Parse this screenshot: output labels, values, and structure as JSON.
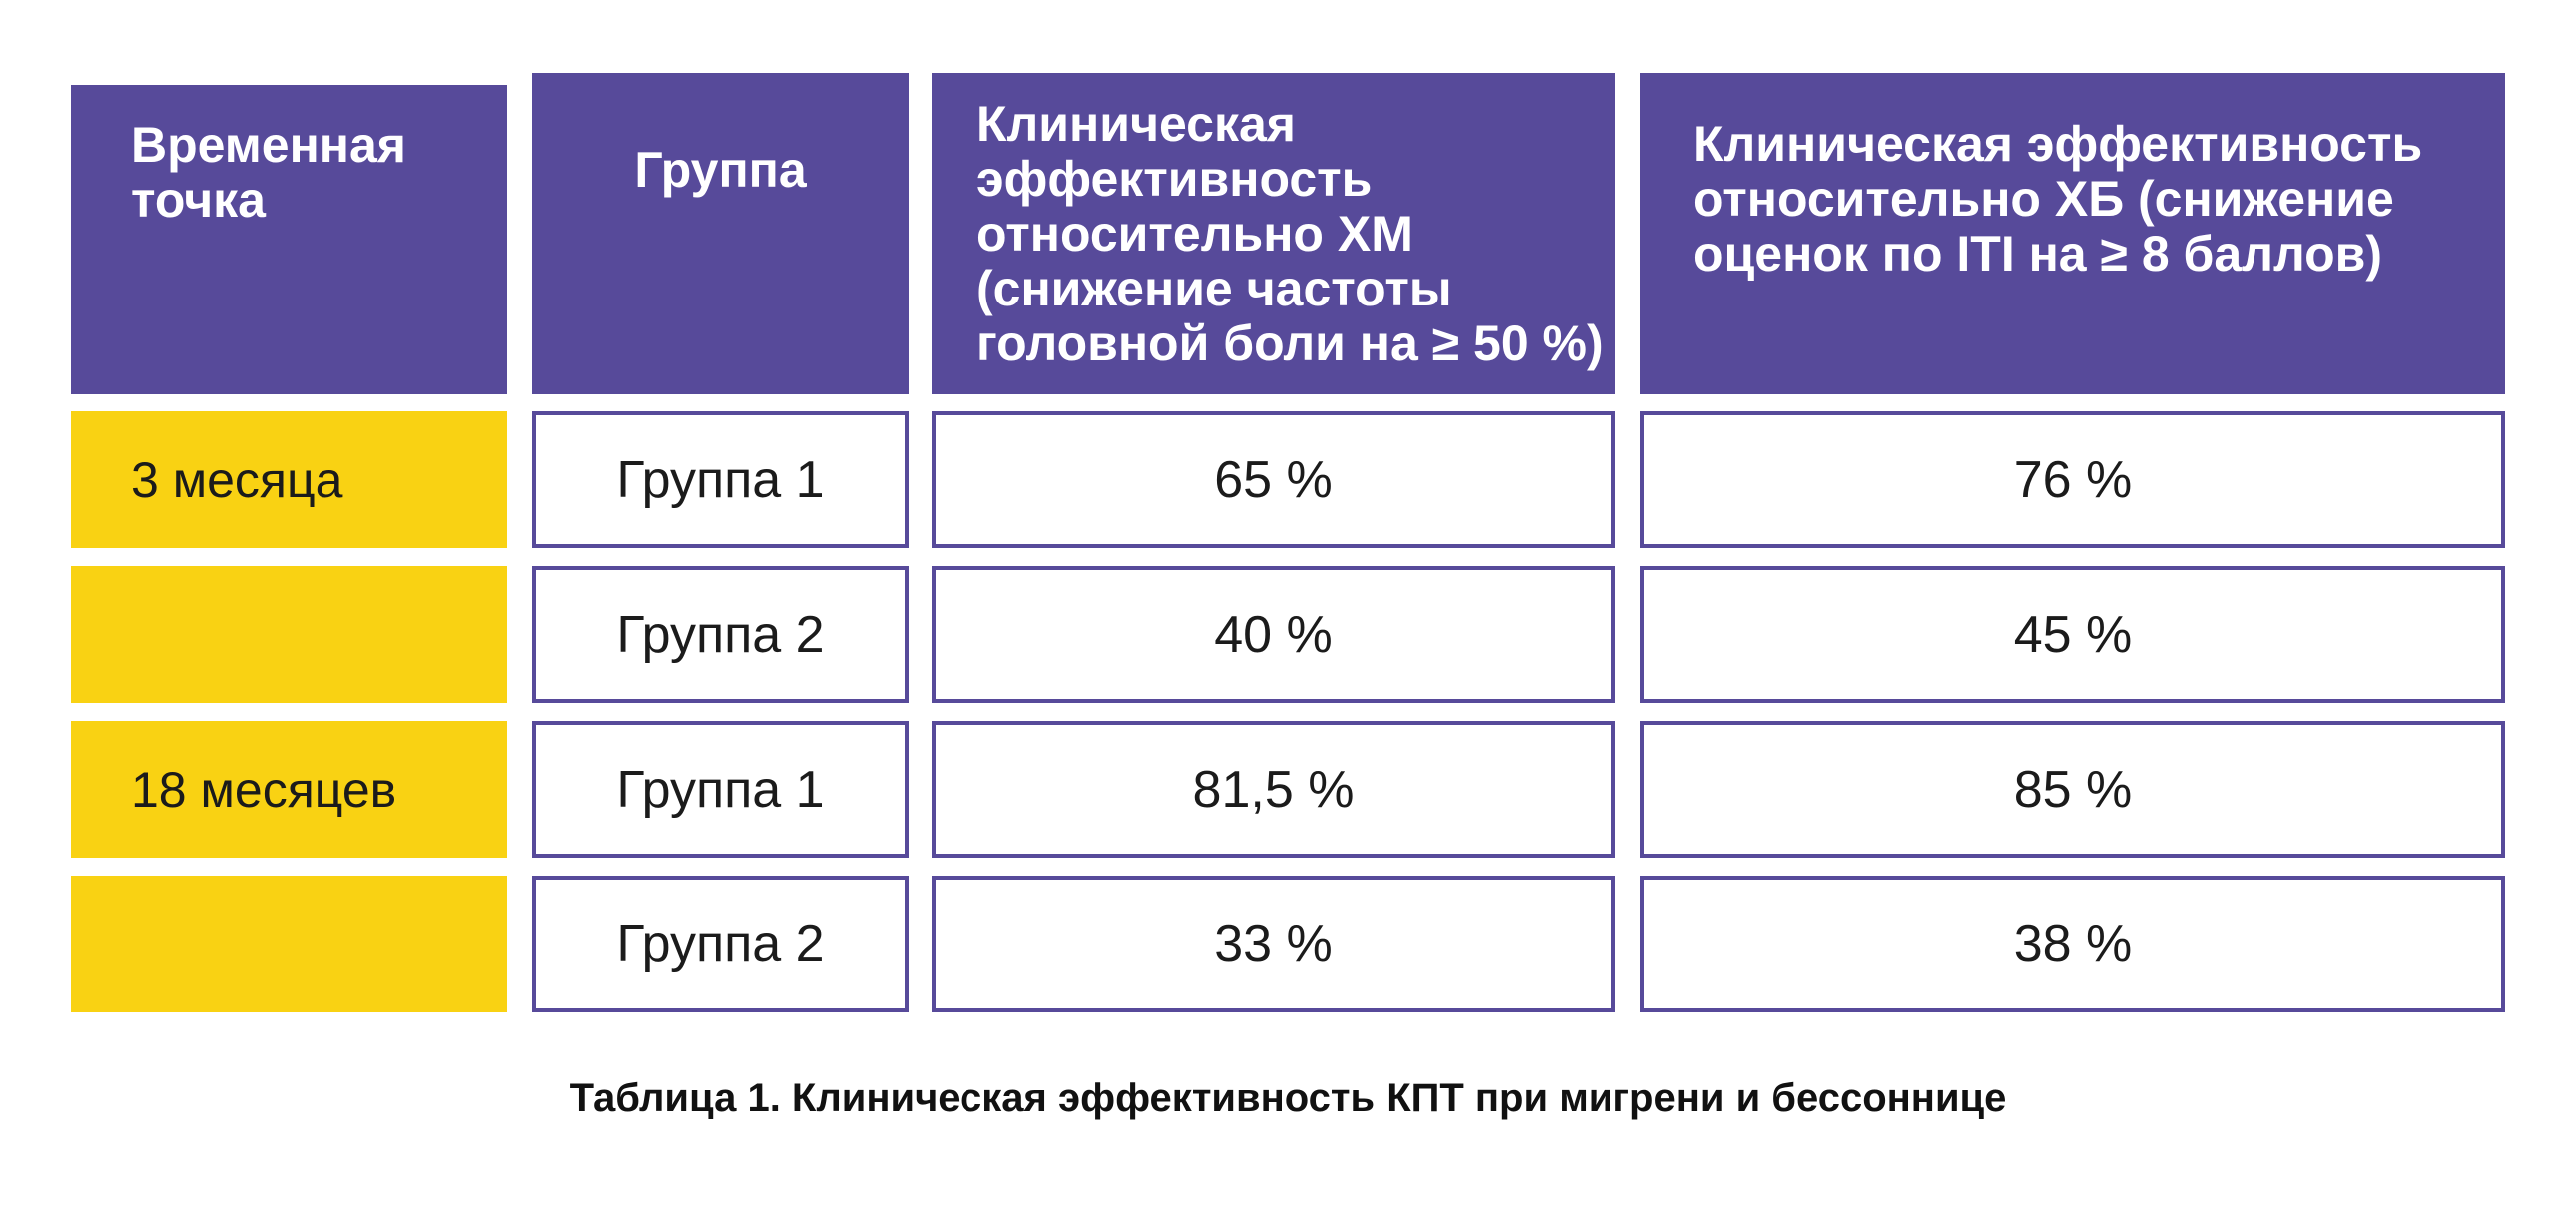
{
  "table": {
    "headers": [
      "Временная точка",
      "Группа",
      "Клиническая эффективность относительно ХМ (снижение частоты головной боли на ≥ 50 %)",
      "Клиническая эффективность относительно ХБ (снижение оценок по ITI на ≥ 8 баллов)"
    ],
    "rows": [
      {
        "time": "3 месяца",
        "group": "Группа 1",
        "xm": "65 %",
        "xb": "76 %"
      },
      {
        "time": "",
        "group": "Группа 2",
        "xm": "40 %",
        "xb": "45 %"
      },
      {
        "time": "18 месяцев",
        "group": "Группа 1",
        "xm": "81,5 %",
        "xb": "85 %"
      },
      {
        "time": "",
        "group": "Группа 2",
        "xm": "33 %",
        "xb": "38 %"
      }
    ]
  },
  "caption": "Таблица 1. Клиническая эффективность КПТ при мигрени и бессоннице"
}
